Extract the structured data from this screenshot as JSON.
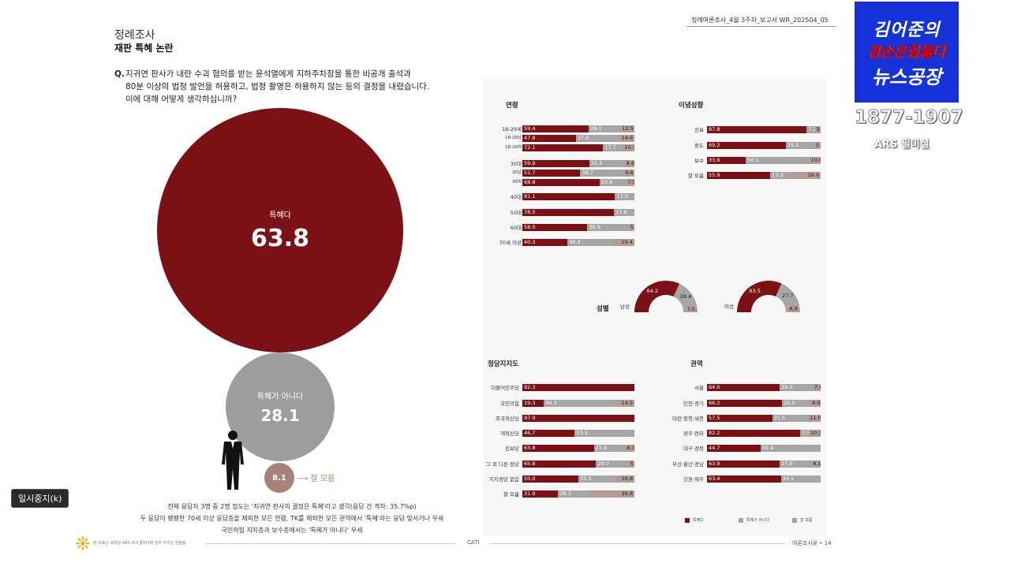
{
  "header": {
    "section": "정례조사",
    "title": "재판 특혜 논란",
    "report_id": "정례여론조사_4월 3주차_보고서   WR_202504_05"
  },
  "question": {
    "label": "Q.",
    "text": "지귀연 판사가 내란 수괴 혐의를 받는 윤석열에게 지하주차장을 통한 비공개 출석과\n80분 이상의 법정 발언을 허용하고, 법정 촬영은 허용하지 않는 등의 결정을 내렸습니다.\n이에 대해 어떻게 생각하십니까?"
  },
  "totals": {
    "yes_label": "특혜다",
    "yes_value": "63.8",
    "no_label": "특혜가 아니다",
    "no_value": "28.1",
    "dk_value": "8.1",
    "dk_label": "잘 모름"
  },
  "summary": {
    "line1": "전체 응답자 3명 중 2명 정도는 '지귀연 판사의 결정은 특혜'라고 생각(응답 간 격차: 35.7%p)",
    "line2": "두 응답이 팽팽한 70세 이상 응답층을 제외한 모든 연령, TK를 제외한 모든 권역에서 '특혜'라는 응답 앞서거나 우세",
    "line3": "국민의힘 지지층과 보수층에서는 '특혜가 아니다' 우세"
  },
  "footer": {
    "note": "본 자료는 모바일 ARS 조사결과이며 일부 수치는 반올림",
    "method": "CATI",
    "page": "여론조사꽃 • 14"
  },
  "sections": {
    "age_title": "연령",
    "ideology_title": "이념성향",
    "gender_title": "성별",
    "party_title": "정당지지도",
    "region_title": "권역"
  },
  "chart_data": [
    {
      "type": "bar",
      "title": "연령",
      "categories": [
        "18-29세",
        "18-29남",
        "18-29여",
        "30대",
        "30남",
        "30여",
        "40대",
        "50대",
        "60대",
        "70세 이상"
      ],
      "series": [
        {
          "name": "특혜다",
          "values": [
            59.4,
            47.8,
            72.1,
            59.9,
            51.7,
            68.8,
            81.1,
            78.5,
            58.0,
            40.3
          ]
        },
        {
          "name": "특혜가 아니다",
          "values": [
            28.1,
            37.6,
            17.7,
            31.5,
            38.7,
            23.6,
            17.0,
            17.6,
            36.9,
            40.3
          ]
        },
        {
          "name": "잘 모름",
          "values": [
            12.5,
            14.6,
            10.3,
            8.6,
            9.6,
            7.5,
            null,
            null,
            5.1,
            19.4
          ]
        }
      ]
    },
    {
      "type": "bar",
      "title": "이념성향",
      "categories": [
        "진보",
        "중도",
        "보수",
        "잘 모름"
      ],
      "series": [
        {
          "name": "특혜다",
          "values": [
            87.8,
            69.2,
            33.9,
            55.9
          ]
        },
        {
          "name": "특혜가 아니다",
          "values": [
            7.2,
            25.2,
            56.1,
            17.2
          ]
        },
        {
          "name": "잘 모름",
          "values": [
            5.0,
            5.6,
            10.0,
            26.9
          ]
        }
      ]
    },
    {
      "type": "pie",
      "title": "성별",
      "categories": [
        "남성",
        "여성"
      ],
      "series": [
        {
          "name": "특혜다",
          "values": [
            64.2,
            63.5
          ]
        },
        {
          "name": "특혜가 아니다",
          "values": [
            28.4,
            27.7
          ]
        },
        {
          "name": "잘 모름",
          "values": [
            7.5,
            8.8
          ]
        }
      ]
    },
    {
      "type": "bar",
      "title": "정당지지도",
      "categories": [
        "더불어민주당",
        "국민의힘",
        "조국혁신당",
        "개혁신당",
        "진보당",
        "그 외 다른 정당",
        "지지정당 없음",
        "잘 모름"
      ],
      "series": [
        {
          "name": "특혜다",
          "values": [
            92.3,
            19.3,
            97.9,
            46.7,
            63.8,
            65.8,
            50.0,
            31.9
          ]
        },
        {
          "name": "특혜가 아니다",
          "values": [
            null,
            66.2,
            null,
            53.3,
            27.9,
            29.0,
            33.3,
            28.3
          ]
        },
        {
          "name": "잘 모름",
          "values": [
            null,
            14.5,
            null,
            null,
            8.3,
            5.2,
            16.8,
            39.8
          ]
        }
      ]
    },
    {
      "type": "bar",
      "title": "권역",
      "categories": [
        "서울",
        "인천·경기",
        "대전·충청·세종",
        "광주·전라",
        "대구·경북",
        "부산·울산·경남",
        "강원·제주"
      ],
      "series": [
        {
          "name": "특혜다",
          "values": [
            64.0,
            66.2,
            57.5,
            82.2,
            44.7,
            63.9,
            63.4
          ]
        },
        {
          "name": "특혜가 아니다",
          "values": [
            29.0,
            25.0,
            31.5,
            7.5,
            50.4,
            27.9,
            34.1
          ]
        },
        {
          "name": "잘 모름",
          "values": [
            7.0,
            8.9,
            11.0,
            10.3,
            null,
            8.1,
            null
          ]
        }
      ]
    }
  ],
  "legend": [
    "특혜다",
    "특혜가 아니다",
    "잘 모름"
  ],
  "colors": {
    "yes": "#7b1115",
    "no": "#a6a6a6",
    "dk": "#b59c94"
  },
  "overlay": {
    "pause_button": "일시중지(k)",
    "logo_line1": "김어준의",
    "logo_line2": "겸손은힘들다",
    "logo_line3": "뉴스공장",
    "phone": "1877-1907",
    "ars": "ARS 필미실"
  }
}
